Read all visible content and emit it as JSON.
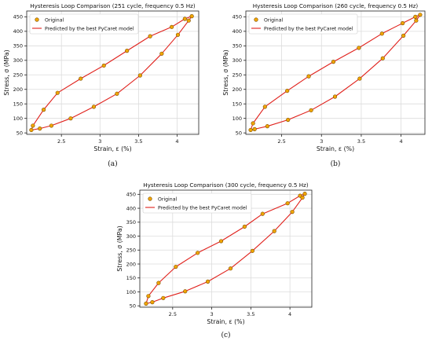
{
  "colors": {
    "original_fill": "#f0a500",
    "original_edge": "#7a4b00",
    "predicted_line": "#e0201b",
    "grid": "#dcdcdc"
  },
  "chart_data": [
    {
      "type": "scatter",
      "panel_label": "(a)",
      "title": "Hysteresis Loop Comparison (251 cycle, frequency 0.5 Hz)",
      "xlabel": "Strain, ε (%)",
      "ylabel": "Stress, σ (MPa)",
      "xlim": [
        2.05,
        4.28
      ],
      "ylim": [
        45,
        470
      ],
      "xticks": [
        2.5,
        3.0,
        3.5,
        4.0
      ],
      "yticks": [
        50,
        100,
        150,
        200,
        250,
        300,
        350,
        400,
        450
      ],
      "grid": true,
      "legend_position": "top-left",
      "series": [
        {
          "name": "Original",
          "style": "markers",
          "points": [
            [
              2.11,
              60
            ],
            [
              2.13,
              75
            ],
            [
              2.22,
              65
            ],
            [
              2.27,
              130
            ],
            [
              2.37,
              75
            ],
            [
              2.45,
              188
            ],
            [
              2.62,
              100
            ],
            [
              2.75,
              237
            ],
            [
              2.92,
              140
            ],
            [
              3.05,
              282
            ],
            [
              3.22,
              185
            ],
            [
              3.35,
              333
            ],
            [
              3.52,
              248
            ],
            [
              3.65,
              383
            ],
            [
              3.8,
              323
            ],
            [
              3.93,
              415
            ],
            [
              4.01,
              388
            ],
            [
              4.1,
              443
            ],
            [
              4.15,
              437
            ],
            [
              4.19,
              452
            ]
          ]
        },
        {
          "name": "Predicted by the best PyCaret model",
          "style": "line",
          "points": [
            [
              2.11,
              60
            ],
            [
              2.13,
              75
            ],
            [
              2.27,
              130
            ],
            [
              2.45,
              188
            ],
            [
              2.75,
              237
            ],
            [
              3.05,
              282
            ],
            [
              3.35,
              333
            ],
            [
              3.65,
              383
            ],
            [
              3.93,
              415
            ],
            [
              4.1,
              443
            ],
            [
              4.19,
              452
            ],
            [
              4.15,
              437
            ],
            [
              4.01,
              388
            ],
            [
              3.8,
              323
            ],
            [
              3.52,
              248
            ],
            [
              3.22,
              185
            ],
            [
              2.92,
              140
            ],
            [
              2.62,
              100
            ],
            [
              2.37,
              75
            ],
            [
              2.22,
              65
            ],
            [
              2.11,
              60
            ]
          ]
        }
      ]
    },
    {
      "type": "scatter",
      "panel_label": "(b)",
      "title": "Hysteresis Loop Comparison (260 cycle, frequency 0.5 Hz)",
      "xlabel": "Strain, ε (%)",
      "ylabel": "Stress, σ (MPa)",
      "xlim": [
        2.05,
        4.3
      ],
      "ylim": [
        45,
        470
      ],
      "xticks": [
        2.5,
        3.0,
        3.5,
        4.0
      ],
      "yticks": [
        50,
        100,
        150,
        200,
        250,
        300,
        350,
        400,
        450
      ],
      "grid": true,
      "legend_position": "top-left",
      "series": [
        {
          "name": "Original",
          "style": "markers",
          "points": [
            [
              2.11,
              60
            ],
            [
              2.14,
              83
            ],
            [
              2.16,
              63
            ],
            [
              2.29,
              140
            ],
            [
              2.32,
              73
            ],
            [
              2.57,
              195
            ],
            [
              2.58,
              95
            ],
            [
              2.84,
              245
            ],
            [
              2.87,
              128
            ],
            [
              3.15,
              295
            ],
            [
              3.17,
              175
            ],
            [
              3.47,
              343
            ],
            [
              3.48,
              237
            ],
            [
              3.76,
              392
            ],
            [
              3.77,
              307
            ],
            [
              4.02,
              428
            ],
            [
              4.03,
              385
            ],
            [
              4.18,
              450
            ],
            [
              4.19,
              437
            ],
            [
              4.24,
              457
            ]
          ]
        },
        {
          "name": "Predicted by the best PyCaret model",
          "style": "line",
          "points": [
            [
              2.11,
              60
            ],
            [
              2.14,
              83
            ],
            [
              2.29,
              140
            ],
            [
              2.57,
              195
            ],
            [
              2.84,
              245
            ],
            [
              3.15,
              295
            ],
            [
              3.47,
              343
            ],
            [
              3.76,
              392
            ],
            [
              4.02,
              428
            ],
            [
              4.18,
              450
            ],
            [
              4.24,
              457
            ],
            [
              4.19,
              437
            ],
            [
              4.03,
              385
            ],
            [
              3.77,
              307
            ],
            [
              3.48,
              237
            ],
            [
              3.17,
              175
            ],
            [
              2.87,
              128
            ],
            [
              2.58,
              95
            ],
            [
              2.32,
              73
            ],
            [
              2.16,
              63
            ],
            [
              2.11,
              60
            ]
          ]
        }
      ]
    },
    {
      "type": "scatter",
      "panel_label": "(c)",
      "title": "Hysteresis Loop Comparison (300 cycle, frequency 0.5 Hz)",
      "xlabel": "Strain, ε (%)",
      "ylabel": "Stress, σ (MPa)",
      "xlim": [
        2.08,
        4.28
      ],
      "ylim": [
        45,
        465
      ],
      "xticks": [
        2.5,
        3.0,
        3.5,
        4.0
      ],
      "yticks": [
        50,
        100,
        150,
        200,
        250,
        300,
        350,
        400,
        450
      ],
      "grid": true,
      "legend_position": "top-left",
      "series": [
        {
          "name": "Original",
          "style": "markers",
          "points": [
            [
              2.16,
              58
            ],
            [
              2.19,
              85
            ],
            [
              2.24,
              63
            ],
            [
              2.32,
              132
            ],
            [
              2.38,
              78
            ],
            [
              2.54,
              190
            ],
            [
              2.66,
              102
            ],
            [
              2.82,
              240
            ],
            [
              2.95,
              137
            ],
            [
              3.12,
              282
            ],
            [
              3.24,
              184
            ],
            [
              3.42,
              334
            ],
            [
              3.52,
              247
            ],
            [
              3.65,
              380
            ],
            [
              3.8,
              318
            ],
            [
              3.97,
              418
            ],
            [
              4.03,
              387
            ],
            [
              4.13,
              445
            ],
            [
              4.16,
              438
            ],
            [
              4.19,
              452
            ]
          ]
        },
        {
          "name": "Predicted by the best PyCaret model",
          "style": "line",
          "points": [
            [
              2.16,
              58
            ],
            [
              2.19,
              85
            ],
            [
              2.32,
              132
            ],
            [
              2.54,
              190
            ],
            [
              2.82,
              240
            ],
            [
              3.12,
              282
            ],
            [
              3.42,
              334
            ],
            [
              3.65,
              380
            ],
            [
              3.97,
              418
            ],
            [
              4.13,
              445
            ],
            [
              4.19,
              452
            ],
            [
              4.16,
              438
            ],
            [
              4.03,
              387
            ],
            [
              3.8,
              318
            ],
            [
              3.52,
              247
            ],
            [
              3.24,
              184
            ],
            [
              2.95,
              137
            ],
            [
              2.66,
              102
            ],
            [
              2.38,
              78
            ],
            [
              2.24,
              63
            ],
            [
              2.16,
              58
            ]
          ]
        }
      ]
    }
  ]
}
